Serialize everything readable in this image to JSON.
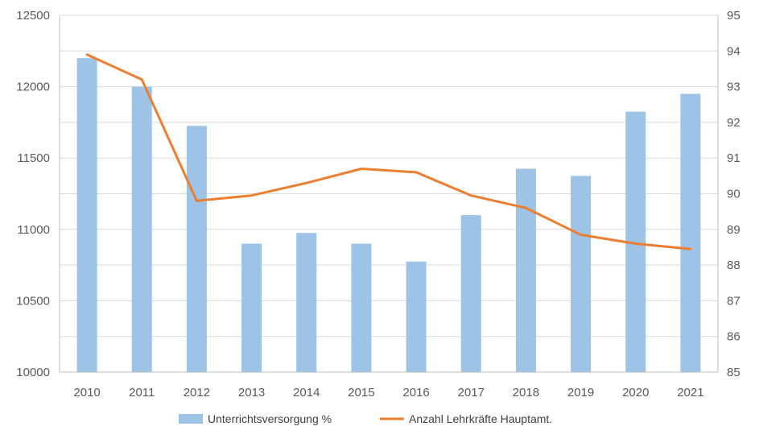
{
  "chart_data": {
    "type": "bar+line",
    "categories": [
      "2010",
      "2011",
      "2012",
      "2013",
      "2014",
      "2015",
      "2016",
      "2017",
      "2018",
      "2019",
      "2020",
      "2021"
    ],
    "series": [
      {
        "name": "Unterrichtsversorgung %",
        "type": "bar",
        "axis": "left",
        "color": "#9dc3e6",
        "values": [
          12200,
          12000,
          11725,
          10900,
          10975,
          10900,
          10775,
          11100,
          11425,
          11375,
          11825,
          11950
        ]
      },
      {
        "name": "Anzahl Lehrkräfte Hauptamt.",
        "type": "line",
        "axis": "right",
        "color": "#ed7d31",
        "values": [
          93.9,
          93.2,
          89.8,
          89.95,
          90.3,
          90.7,
          90.6,
          89.95,
          89.6,
          88.85,
          88.6,
          88.45
        ]
      }
    ],
    "y_left": {
      "min": 10000,
      "max": 12500,
      "ticks": [
        "10000",
        "10500",
        "11000",
        "11500",
        "12000",
        "12500"
      ]
    },
    "y_right": {
      "min": 85,
      "max": 95,
      "ticks": [
        "85",
        "86",
        "87",
        "88",
        "89",
        "90",
        "91",
        "92",
        "93",
        "94",
        "95"
      ]
    },
    "legend": [
      "Unterrichtsversorgung %",
      "Anzahl Lehrkräfte Hauptamt."
    ],
    "legend_position": "bottom",
    "grid": true
  }
}
